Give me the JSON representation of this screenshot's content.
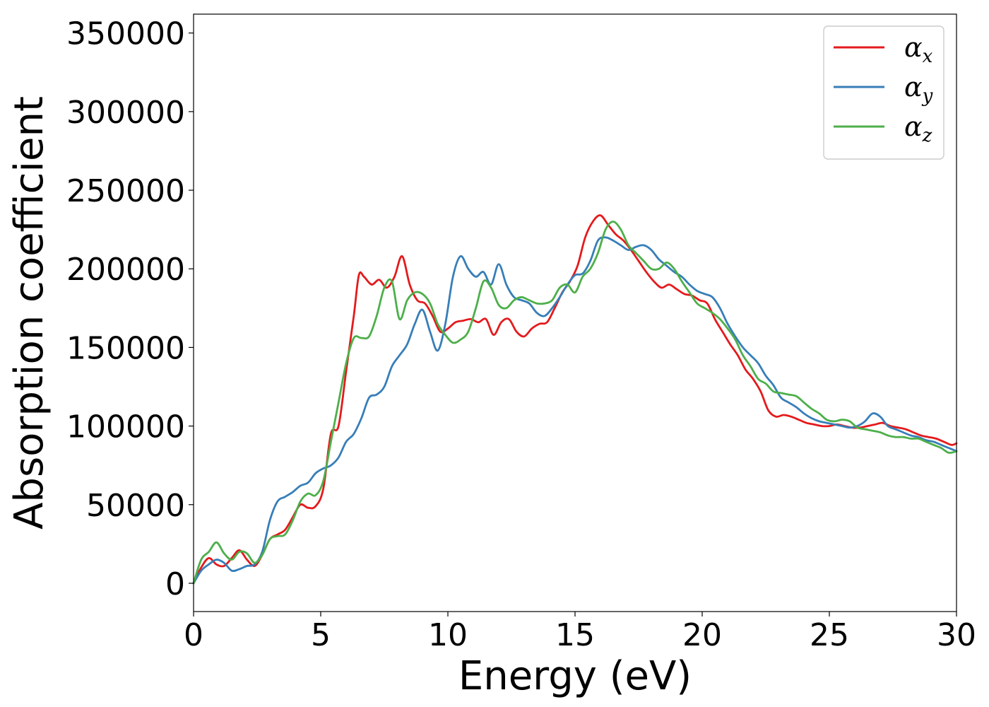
{
  "chart_data": {
    "type": "line",
    "title": "",
    "xlabel": "Energy (eV)",
    "ylabel": "Absorption coefficient",
    "xlim": [
      0,
      30
    ],
    "ylim": [
      -18000,
      362000
    ],
    "xticks": [
      0,
      5,
      10,
      15,
      20,
      25,
      30
    ],
    "yticks": [
      0,
      50000,
      100000,
      150000,
      200000,
      250000,
      300000,
      350000
    ],
    "grid": false,
    "legend_position": "top-right",
    "series": [
      {
        "name": "α",
        "subscript": "x",
        "color": "#e41a1c",
        "x": [
          0,
          0.3,
          0.6,
          0.9,
          1.2,
          1.5,
          1.8,
          2.1,
          2.4,
          2.7,
          3.0,
          3.3,
          3.6,
          3.9,
          4.2,
          4.5,
          4.8,
          5.1,
          5.4,
          5.7,
          6.0,
          6.3,
          6.5,
          6.7,
          7.0,
          7.3,
          7.6,
          7.9,
          8.2,
          8.5,
          8.8,
          9.1,
          9.4,
          9.7,
          10.0,
          10.3,
          10.6,
          10.9,
          11.2,
          11.5,
          11.8,
          12.1,
          12.4,
          12.7,
          13.0,
          13.3,
          13.6,
          13.9,
          14.2,
          14.5,
          14.8,
          15.1,
          15.4,
          15.7,
          16.0,
          16.3,
          16.6,
          16.9,
          17.2,
          17.5,
          17.8,
          18.1,
          18.4,
          18.7,
          19.0,
          19.3,
          19.6,
          19.9,
          20.2,
          20.5,
          20.8,
          21.1,
          21.4,
          21.7,
          22.0,
          22.3,
          22.6,
          22.9,
          23.2,
          23.5,
          23.8,
          24.1,
          24.4,
          24.7,
          25.0,
          25.3,
          25.6,
          25.9,
          26.2,
          26.5,
          26.8,
          27.1,
          27.4,
          27.7,
          28.0,
          28.3,
          28.6,
          28.9,
          29.2,
          29.5,
          29.8,
          30.0
        ],
        "y": [
          0,
          10000,
          16000,
          12000,
          11000,
          16000,
          21000,
          15000,
          11000,
          18000,
          28000,
          31000,
          34000,
          42000,
          50000,
          48000,
          49000,
          60000,
          95000,
          100000,
          135000,
          170000,
          196000,
          195000,
          190000,
          193000,
          188000,
          195000,
          208000,
          190000,
          180000,
          178000,
          170000,
          160000,
          162000,
          166000,
          167000,
          168000,
          166000,
          168000,
          158000,
          166000,
          168000,
          160000,
          157000,
          162000,
          165000,
          166000,
          175000,
          185000,
          192000,
          202000,
          220000,
          230000,
          234000,
          228000,
          222000,
          218000,
          212000,
          205000,
          198000,
          192000,
          188000,
          190000,
          187000,
          184000,
          183000,
          180000,
          178000,
          168000,
          160000,
          152000,
          145000,
          136000,
          130000,
          122000,
          110000,
          106000,
          107000,
          106000,
          104000,
          102000,
          101000,
          100000,
          100000,
          101000,
          100000,
          99000,
          99000,
          100000,
          101000,
          102000,
          100000,
          99000,
          98000,
          96000,
          94000,
          93000,
          92000,
          90000,
          88000,
          89000
        ]
      },
      {
        "name": "α",
        "subscript": "y",
        "color": "#377eb8",
        "x": [
          0,
          0.3,
          0.6,
          0.9,
          1.2,
          1.5,
          1.8,
          2.1,
          2.4,
          2.7,
          3.0,
          3.3,
          3.6,
          3.9,
          4.2,
          4.5,
          4.8,
          5.1,
          5.4,
          5.7,
          6.0,
          6.3,
          6.6,
          6.9,
          7.2,
          7.5,
          7.8,
          8.1,
          8.4,
          8.7,
          9.0,
          9.3,
          9.6,
          9.9,
          10.2,
          10.5,
          10.8,
          11.1,
          11.4,
          11.7,
          12.0,
          12.3,
          12.6,
          12.9,
          13.2,
          13.5,
          13.8,
          14.1,
          14.4,
          14.7,
          15.0,
          15.3,
          15.6,
          15.9,
          16.2,
          16.5,
          16.8,
          17.1,
          17.4,
          17.7,
          18.0,
          18.3,
          18.6,
          18.9,
          19.2,
          19.5,
          19.8,
          20.1,
          20.4,
          20.7,
          21.0,
          21.3,
          21.6,
          21.9,
          22.2,
          22.5,
          22.8,
          23.1,
          23.4,
          23.7,
          24.0,
          24.3,
          24.6,
          24.9,
          25.2,
          25.5,
          25.8,
          26.1,
          26.4,
          26.7,
          27.0,
          27.3,
          27.6,
          27.9,
          28.2,
          28.5,
          28.8,
          29.1,
          29.4,
          29.7,
          30.0
        ],
        "y": [
          0,
          8000,
          12000,
          15000,
          13000,
          8000,
          9000,
          11000,
          12000,
          20000,
          40000,
          52000,
          55000,
          58000,
          62000,
          64000,
          70000,
          73000,
          75000,
          80000,
          90000,
          95000,
          105000,
          118000,
          120000,
          125000,
          138000,
          145000,
          152000,
          165000,
          174000,
          160000,
          148000,
          165000,
          195000,
          208000,
          200000,
          195000,
          198000,
          190000,
          203000,
          190000,
          182000,
          180000,
          178000,
          172000,
          170000,
          175000,
          182000,
          190000,
          196000,
          197000,
          205000,
          218000,
          220000,
          218000,
          215000,
          212000,
          214000,
          215000,
          212000,
          206000,
          202000,
          198000,
          195000,
          190000,
          186000,
          184000,
          182000,
          175000,
          165000,
          157000,
          150000,
          145000,
          140000,
          132000,
          126000,
          118000,
          115000,
          112000,
          108000,
          105000,
          103000,
          102000,
          101000,
          100000,
          99000,
          100000,
          103000,
          108000,
          106000,
          100000,
          98000,
          96000,
          94000,
          93000,
          91000,
          90000,
          88000,
          86000,
          84000
        ]
      },
      {
        "name": "α",
        "subscript": "z",
        "color": "#4daf4a",
        "x": [
          0,
          0.3,
          0.6,
          0.9,
          1.2,
          1.5,
          1.8,
          2.1,
          2.4,
          2.7,
          3.0,
          3.3,
          3.6,
          3.9,
          4.2,
          4.5,
          4.8,
          5.1,
          5.4,
          5.7,
          6.0,
          6.3,
          6.6,
          6.9,
          7.2,
          7.5,
          7.8,
          8.1,
          8.4,
          8.7,
          9.0,
          9.3,
          9.6,
          9.9,
          10.2,
          10.5,
          10.8,
          11.1,
          11.4,
          11.7,
          12.0,
          12.3,
          12.6,
          12.9,
          13.2,
          13.5,
          13.8,
          14.1,
          14.4,
          14.7,
          15.0,
          15.3,
          15.6,
          15.9,
          16.2,
          16.5,
          16.8,
          17.1,
          17.4,
          17.7,
          18.0,
          18.3,
          18.6,
          18.9,
          19.2,
          19.5,
          19.8,
          20.1,
          20.4,
          20.7,
          21.0,
          21.3,
          21.6,
          21.9,
          22.2,
          22.5,
          22.8,
          23.1,
          23.4,
          23.7,
          24.0,
          24.3,
          24.6,
          24.9,
          25.2,
          25.5,
          25.8,
          26.1,
          26.4,
          26.7,
          27.0,
          27.3,
          27.6,
          27.9,
          28.2,
          28.5,
          28.8,
          29.1,
          29.4,
          29.7,
          30.0
        ],
        "y": [
          0,
          15000,
          20000,
          26000,
          19000,
          15000,
          20000,
          19000,
          13000,
          18000,
          28000,
          30000,
          31000,
          40000,
          52000,
          57000,
          56000,
          65000,
          90000,
          115000,
          140000,
          156000,
          156000,
          157000,
          170000,
          188000,
          192000,
          168000,
          180000,
          185000,
          184000,
          178000,
          165000,
          158000,
          153000,
          155000,
          160000,
          175000,
          192000,
          188000,
          177000,
          175000,
          180000,
          182000,
          180000,
          178000,
          178000,
          180000,
          188000,
          190000,
          185000,
          195000,
          200000,
          210000,
          225000,
          230000,
          225000,
          215000,
          210000,
          205000,
          200000,
          200000,
          204000,
          200000,
          192000,
          185000,
          178000,
          175000,
          172000,
          168000,
          162000,
          155000,
          145000,
          138000,
          130000,
          127000,
          122000,
          121000,
          120000,
          119000,
          115000,
          111000,
          108000,
          104000,
          103000,
          104000,
          103000,
          99000,
          98000,
          97000,
          96000,
          94000,
          93000,
          93000,
          92000,
          92000,
          90000,
          88000,
          86000,
          83000,
          84000
        ]
      }
    ]
  }
}
